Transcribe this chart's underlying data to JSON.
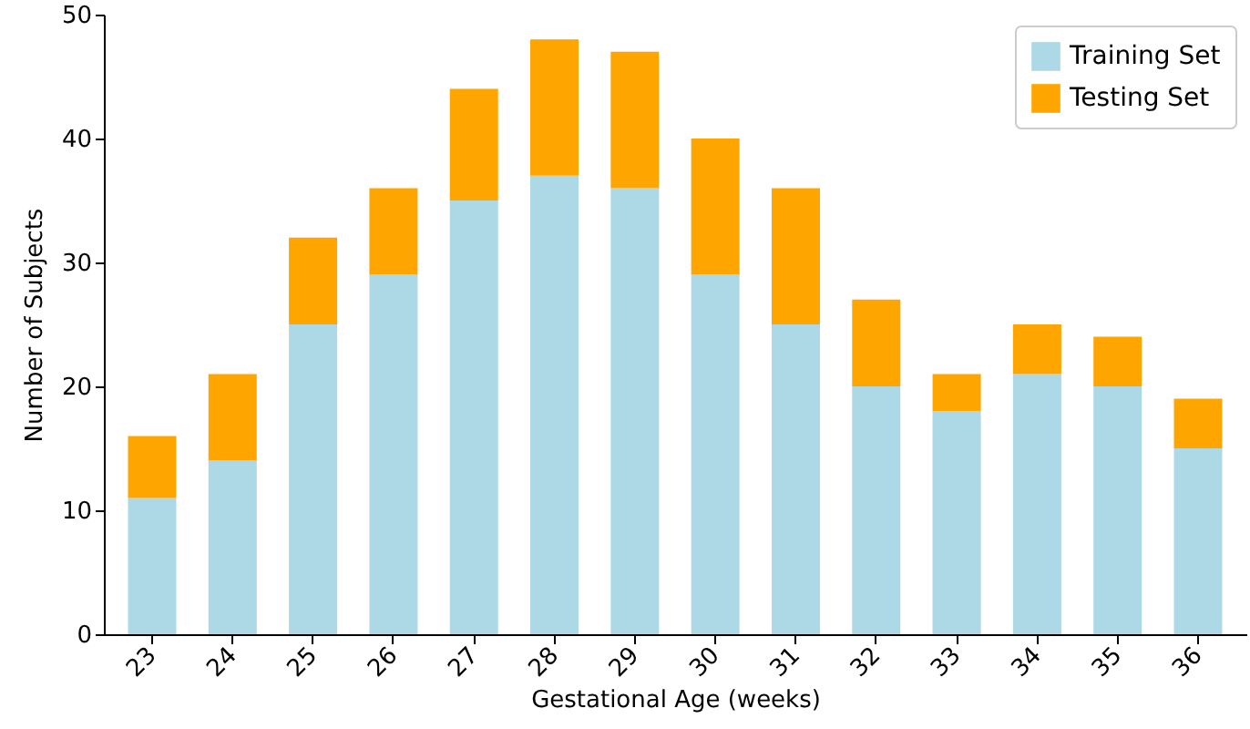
{
  "chart_data": {
    "type": "bar",
    "stacked": true,
    "xlabel": "Gestational Age (weeks)",
    "ylabel": "Number of Subjects",
    "categories": [
      "23",
      "24",
      "25",
      "26",
      "27",
      "28",
      "29",
      "30",
      "31",
      "32",
      "33",
      "34",
      "35",
      "36"
    ],
    "series": [
      {
        "name": "Training Set",
        "color": "#add8e6",
        "values": [
          11,
          14,
          25,
          29,
          35,
          37,
          36,
          29,
          25,
          20,
          18,
          21,
          20,
          15
        ]
      },
      {
        "name": "Testing Set",
        "color": "#ffa500",
        "values": [
          5,
          7,
          7,
          7,
          9,
          11,
          11,
          11,
          11,
          7,
          3,
          4,
          4,
          4
        ]
      }
    ],
    "ylim": [
      0,
      50
    ],
    "yticks": [
      0,
      10,
      20,
      30,
      40,
      50
    ],
    "grid": false,
    "legend": "top right"
  }
}
